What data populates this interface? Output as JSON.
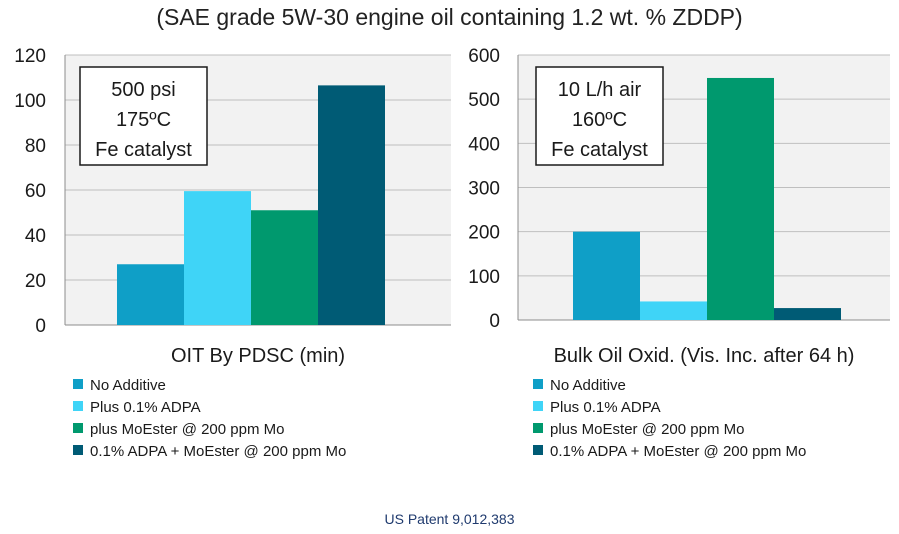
{
  "suptitle": "(SAE grade 5W-30 engine oil containing 1.2 wt. % ZDDP)",
  "footer": "US Patent 9,012,383",
  "colors": {
    "plot_bg": "#f2f2f2",
    "grid": "#bfbfbf",
    "axis": "#8c8c8c"
  },
  "chart_data": [
    {
      "type": "bar",
      "xlabel": "OIT By PDSC (min)",
      "ylabel": "",
      "ylim": [
        0,
        120
      ],
      "yticks": [
        0,
        20,
        40,
        60,
        80,
        100,
        120
      ],
      "grid": true,
      "annotation": [
        "500 psi",
        "175ºC",
        "Fe catalyst"
      ],
      "series": [
        {
          "name": "No Additive",
          "color": "#0f9fc7",
          "values": [
            27
          ]
        },
        {
          "name": "Plus 0.1% ADPA",
          "color": "#3fd4f7",
          "values": [
            59.5
          ]
        },
        {
          "name": "plus MoEster @ 200 ppm Mo",
          "color": "#00996e",
          "values": [
            51
          ]
        },
        {
          "name": "0.1% ADPA + MoEster @ 200 ppm Mo",
          "color": "#005b75",
          "values": [
            106.5
          ]
        }
      ],
      "legend_position": "bottom"
    },
    {
      "type": "bar",
      "xlabel": "Bulk Oil Oxid. (Vis. Inc. after 64 h)",
      "ylabel": "",
      "ylim": [
        0,
        600
      ],
      "yticks": [
        0,
        100,
        200,
        300,
        400,
        500,
        600
      ],
      "grid": true,
      "annotation": [
        "10 L/h air",
        "160ºC",
        "Fe catalyst"
      ],
      "series": [
        {
          "name": "No Additive",
          "color": "#0f9fc7",
          "values": [
            200
          ]
        },
        {
          "name": "Plus 0.1% ADPA",
          "color": "#3fd4f7",
          "values": [
            42
          ]
        },
        {
          "name": "plus MoEster @ 200 ppm Mo",
          "color": "#00996e",
          "values": [
            548
          ]
        },
        {
          "name": "0.1% ADPA + MoEster @ 200 ppm Mo",
          "color": "#005b75",
          "values": [
            27
          ]
        }
      ],
      "legend_position": "bottom"
    }
  ]
}
